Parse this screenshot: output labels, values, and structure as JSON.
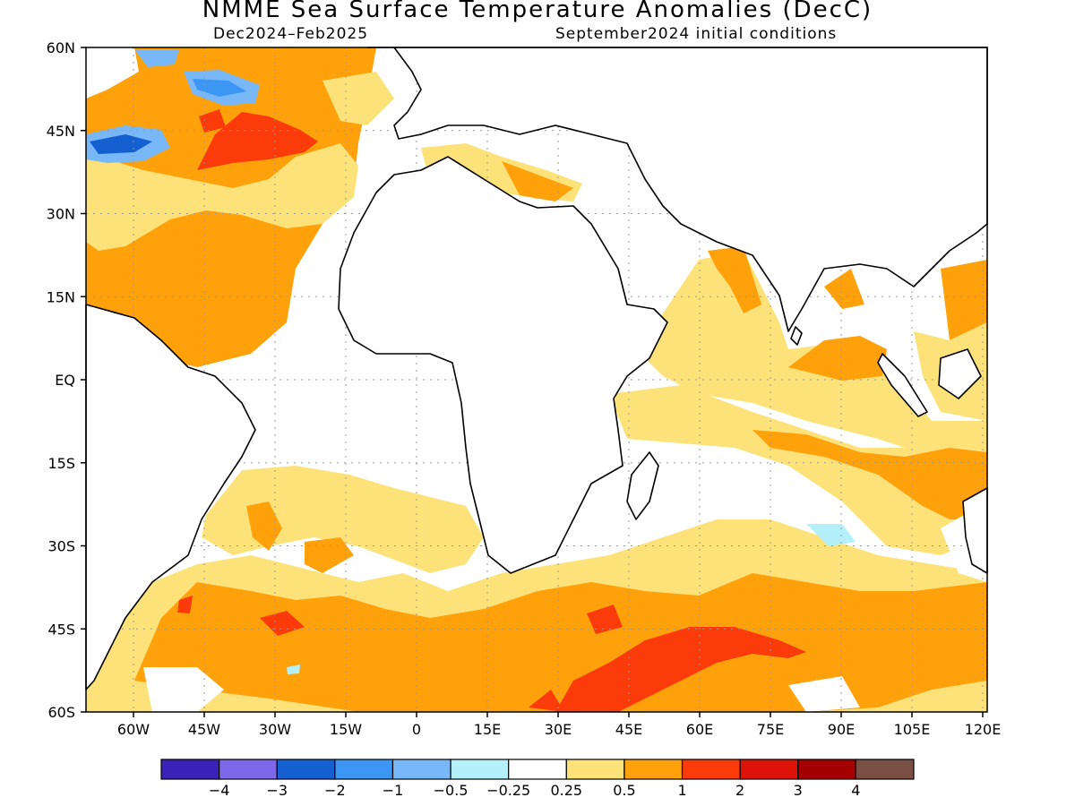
{
  "title": "NMME Sea Surface Temperature Anomalies (DecC)",
  "season": "Dec2024–Feb2025",
  "init": "September2024 initial conditions",
  "lat_labels": [
    "60N",
    "45N",
    "30N",
    "15N",
    "EQ",
    "15S",
    "30S",
    "45S",
    "60S"
  ],
  "lon_labels": [
    "60W",
    "45W",
    "30W",
    "15W",
    "0",
    "15E",
    "30E",
    "45E",
    "60E",
    "75E",
    "90E",
    "105E",
    "120E"
  ],
  "colorbar": {
    "colors": [
      "#3a22b8",
      "#7c68e8",
      "#1460d0",
      "#3c96f4",
      "#78b8f8",
      "#b4f0fa",
      "#ffffff",
      "#fde27a",
      "#fea10a",
      "#fb3b0a",
      "#dc1306",
      "#a40000",
      "#7a5044"
    ],
    "labels": [
      "−4",
      "−3",
      "−2",
      "−1",
      "−0.5",
      "−0.25",
      "0.25",
      "0.5",
      "1",
      "2",
      "3",
      "4"
    ]
  }
}
